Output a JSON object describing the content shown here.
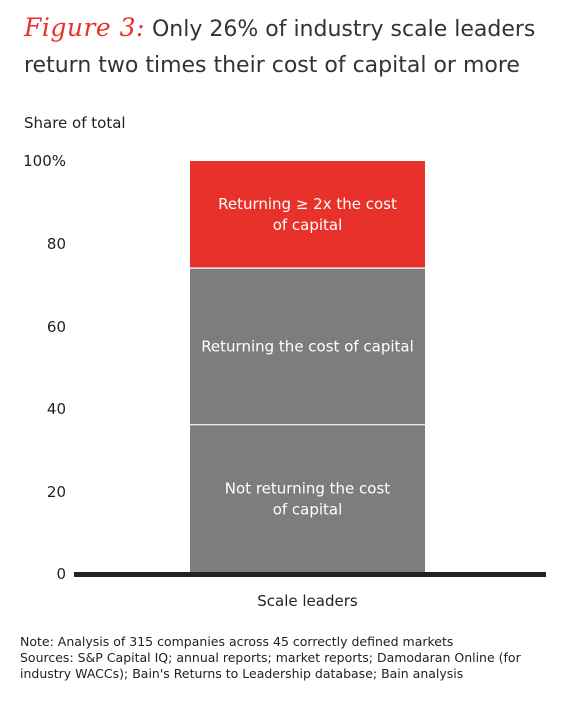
{
  "figure_label": "Figure 3:",
  "title_line1": "Only 26% of industry scale leaders",
  "title_line2": "return two times their cost of capital or more",
  "chart_data": {
    "type": "bar",
    "stacked": true,
    "ylabel": "Share of total",
    "ylim": [
      0,
      100
    ],
    "yticks": [
      "0",
      "20",
      "40",
      "60",
      "80",
      "100%"
    ],
    "categories": [
      "Scale leaders"
    ],
    "series": [
      {
        "name": "Not returning the cost of capital",
        "label_lines": [
          "Not returning the cost",
          "of capital"
        ],
        "values": [
          36
        ],
        "color": "#7d7d7d"
      },
      {
        "name": "Returning the cost of capital",
        "label_lines": [
          "Returning the cost of capital"
        ],
        "values": [
          38
        ],
        "color": "#7d7d7d"
      },
      {
        "name": "Returning ≥ 2x the cost of capital",
        "label_lines": [
          "Returning ≥ 2x the cost",
          "of capital"
        ],
        "values": [
          26
        ],
        "color": "#e8312a"
      }
    ]
  },
  "notes": [
    "Note: Analysis of 315 companies across 45 correctly defined markets",
    "Sources: S&P Capital IQ; annual reports; market reports; Damodaran Online (for",
    "industry WACCs); Bain's Returns to Leadership database; Bain analysis"
  ]
}
